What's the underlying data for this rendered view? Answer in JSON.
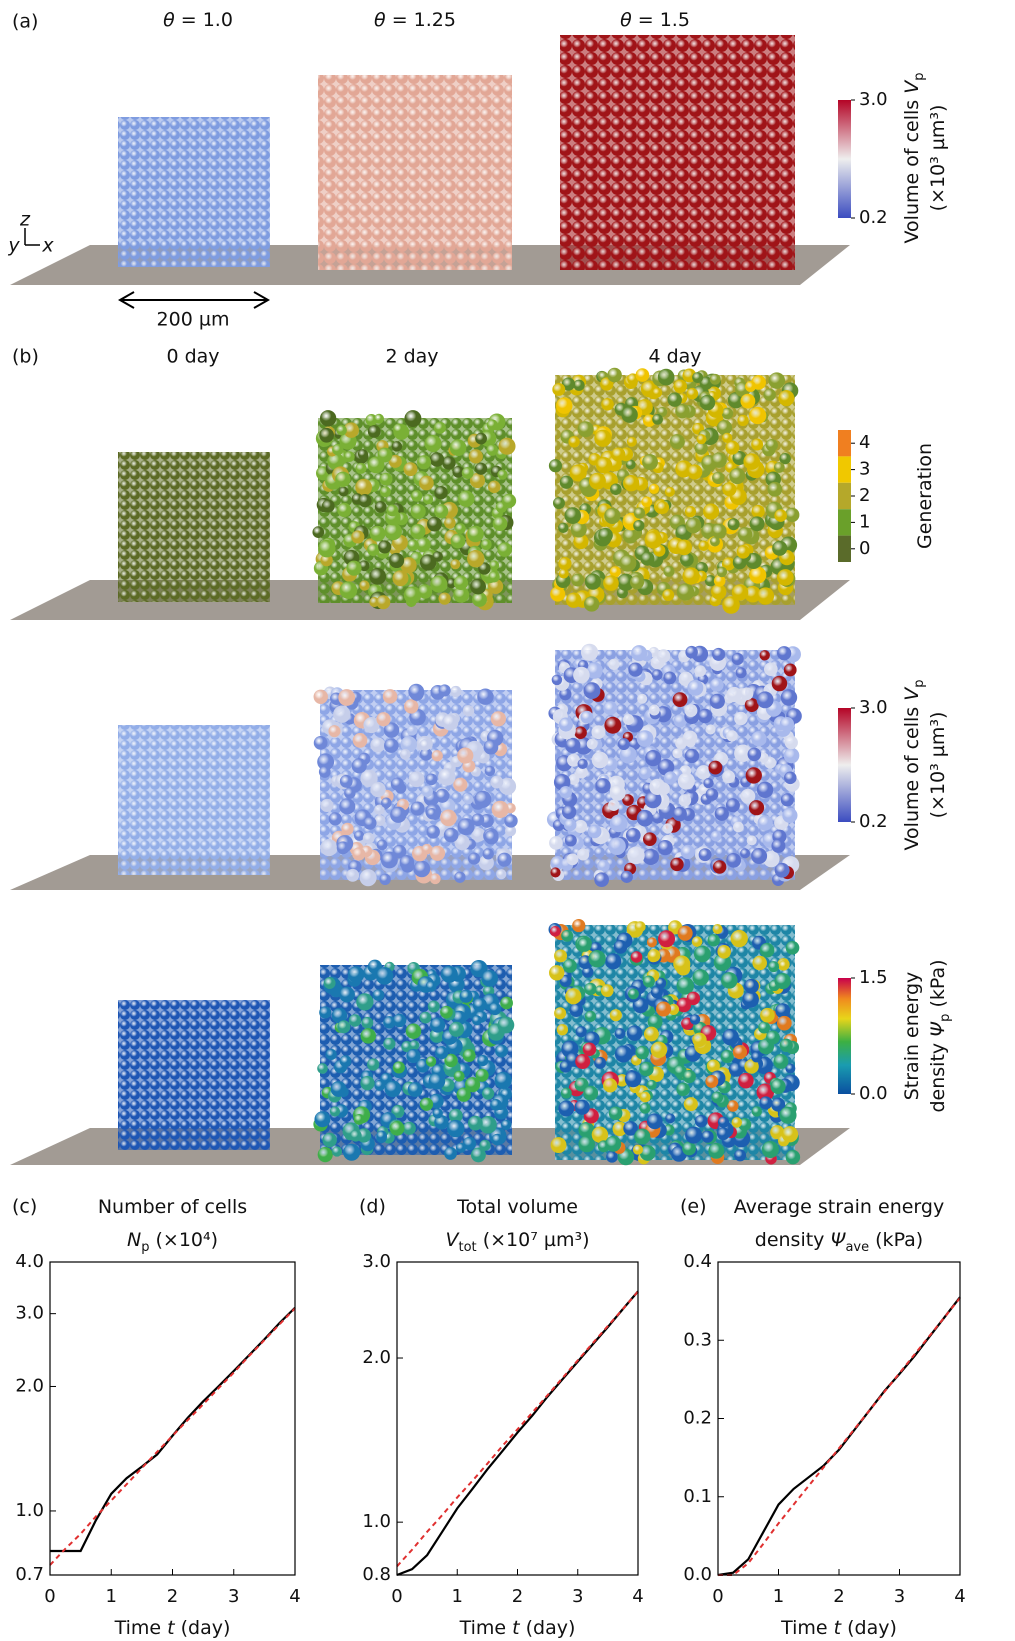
{
  "figure": {
    "panel_a": {
      "label": "(a)",
      "columns": [
        [
          {
            "text": "θ",
            "style": "italic"
          },
          {
            "text": " = 1.0"
          }
        ],
        [
          {
            "text": "θ",
            "style": "italic"
          },
          {
            "text": " = 1.25"
          }
        ],
        [
          {
            "text": "θ",
            "style": "italic"
          },
          {
            "text": " = 1.5"
          }
        ]
      ]
    },
    "axes_triad": [
      "z",
      "y",
      "x"
    ],
    "scale_bar": "200 µm",
    "panel_b": {
      "label": "(b)",
      "columns": [
        "0 day",
        "2 day",
        "4 day"
      ]
    },
    "colorbars": [
      {
        "label": [
          [
            {
              "text": "Volume of cells "
            },
            {
              "text": "V",
              "style": "italic"
            },
            {
              "text": "p",
              "style": "sub"
            }
          ],
          [
            {
              "text": "(×10³ µm³)"
            }
          ]
        ],
        "ticks": [
          {
            "value": 3,
            "label": "3.0"
          },
          0.2
        ]
      },
      {
        "label": [
          [
            {
              "text": "Generation"
            }
          ]
        ],
        "ticks": [
          4,
          3,
          2,
          1,
          0
        ]
      },
      {
        "label": [
          [
            {
              "text": "Volume of cells "
            },
            {
              "text": "V",
              "style": "italic"
            },
            {
              "text": "p",
              "style": "sub"
            }
          ],
          [
            {
              "text": "(×10³ µm³)"
            }
          ]
        ],
        "ticks": [
          {
            "value": 3,
            "label": "3.0"
          },
          0.2
        ]
      },
      {
        "label": [
          [
            {
              "text": "Strain energy"
            }
          ],
          [
            {
              "text": "density "
            },
            {
              "text": "Ψ",
              "style": "italic"
            },
            {
              "text": "p",
              "style": "sub"
            },
            {
              "text": " (kPa)"
            }
          ]
        ],
        "ticks": [
          1.5,
          {
            "value": 0,
            "label": "0.0"
          }
        ]
      }
    ]
  },
  "chart_data": [
    {
      "type": "line",
      "panel": "(c)",
      "title": [
        [
          {
            "text": "Number of cells"
          }
        ],
        [
          {
            "text": "N",
            "style": "italic"
          },
          {
            "text": "p",
            "style": "sub"
          },
          {
            "text": " (×10⁴)"
          }
        ]
      ],
      "xlabel": [
        {
          "text": "Time "
        },
        {
          "text": "t",
          "style": "italic"
        },
        {
          "text": " (day)"
        }
      ],
      "x": [
        0,
        0.25,
        0.5,
        0.75,
        1,
        1.25,
        1.5,
        1.75,
        2,
        2.25,
        2.5,
        2.75,
        3,
        3.25,
        3.5,
        3.75,
        4
      ],
      "series": [
        {
          "color": "#000000",
          "style": "solid",
          "values": [
            0.8,
            0.8,
            0.8,
            0.95,
            1.1,
            1.2,
            1.28,
            1.37,
            1.52,
            1.68,
            1.84,
            2.0,
            2.18,
            2.38,
            2.6,
            2.85,
            3.1
          ]
        },
        {
          "color": "#e03030",
          "style": "dashed",
          "values": [
            0.74,
            0.81,
            0.88,
            0.97,
            1.06,
            1.16,
            1.27,
            1.39,
            1.52,
            1.66,
            1.81,
            1.98,
            2.16,
            2.37,
            2.59,
            2.83,
            3.09
          ]
        }
      ],
      "xlim": [
        0,
        4
      ],
      "xticks": [
        0,
        1,
        2,
        3,
        4
      ],
      "yscale": "log",
      "ylim": [
        0.7,
        4.0
      ],
      "yticks": [
        0.7,
        {
          "value": 1,
          "label": "1.0"
        },
        {
          "value": 2,
          "label": "2.0"
        },
        {
          "value": 3,
          "label": "3.0"
        },
        {
          "value": 4,
          "label": "4.0"
        }
      ]
    },
    {
      "type": "line",
      "panel": "(d)",
      "title": [
        [
          {
            "text": "Total volume"
          }
        ],
        [
          {
            "text": "V",
            "style": "italic"
          },
          {
            "text": "tot",
            "style": "sub"
          },
          {
            "text": " (×10⁷ µm³)"
          }
        ]
      ],
      "xlabel": [
        {
          "text": "Time "
        },
        {
          "text": "t",
          "style": "italic"
        },
        {
          "text": " (day)"
        }
      ],
      "x": [
        0,
        0.25,
        0.5,
        0.75,
        1,
        1.25,
        1.5,
        1.75,
        2,
        2.25,
        2.5,
        2.75,
        3,
        3.25,
        3.5,
        3.75,
        4
      ],
      "series": [
        {
          "color": "#000000",
          "style": "solid",
          "values": [
            0.8,
            0.82,
            0.87,
            0.96,
            1.06,
            1.15,
            1.25,
            1.35,
            1.46,
            1.57,
            1.7,
            1.83,
            1.97,
            2.12,
            2.28,
            2.46,
            2.65
          ]
        },
        {
          "color": "#e03030",
          "style": "dashed",
          "values": [
            0.83,
            0.89,
            0.96,
            1.03,
            1.11,
            1.19,
            1.28,
            1.38,
            1.48,
            1.59,
            1.71,
            1.84,
            1.98,
            2.13,
            2.29,
            2.46,
            2.65
          ]
        }
      ],
      "xlim": [
        0,
        4
      ],
      "xticks": [
        0,
        1,
        2,
        3,
        4
      ],
      "yscale": "log",
      "ylim": [
        0.8,
        3.0
      ],
      "yticks": [
        0.8,
        {
          "value": 1,
          "label": "1.0"
        },
        {
          "value": 2,
          "label": "2.0"
        },
        {
          "value": 3,
          "label": "3.0"
        }
      ]
    },
    {
      "type": "line",
      "panel": "(e)",
      "title": [
        [
          {
            "text": "Average strain energy"
          }
        ],
        [
          {
            "text": "density "
          },
          {
            "text": "Ψ",
            "style": "italic"
          },
          {
            "text": "ave",
            "style": "sub"
          },
          {
            "text": " (kPa)"
          }
        ]
      ],
      "xlabel": [
        {
          "text": "Time "
        },
        {
          "text": "t",
          "style": "italic"
        },
        {
          "text": " (day)"
        }
      ],
      "x": [
        0,
        0.25,
        0.5,
        0.75,
        1,
        1.25,
        1.5,
        1.75,
        2,
        2.25,
        2.5,
        2.75,
        3,
        3.25,
        3.5,
        3.75,
        4
      ],
      "series": [
        {
          "color": "#000000",
          "style": "solid",
          "values": [
            0,
            0.003,
            0.02,
            0.055,
            0.09,
            0.11,
            0.125,
            0.14,
            0.16,
            0.185,
            0.21,
            0.235,
            0.257,
            0.28,
            0.305,
            0.33,
            0.355
          ]
        },
        {
          "color": "#e03030",
          "style": "dashed",
          "values": [
            0,
            0,
            0.015,
            0.04,
            0.066,
            0.09,
            0.114,
            0.138,
            0.162,
            0.186,
            0.21,
            0.234,
            0.258,
            0.282,
            0.306,
            0.33,
            0.354
          ]
        }
      ],
      "xlim": [
        0,
        4
      ],
      "xticks": [
        0,
        1,
        2,
        3,
        4
      ],
      "yscale": "linear",
      "ylim": [
        0,
        0.4
      ],
      "yticks": [
        {
          "value": 0,
          "label": "0.0"
        },
        0.1,
        0.2,
        0.3,
        0.4
      ]
    }
  ]
}
